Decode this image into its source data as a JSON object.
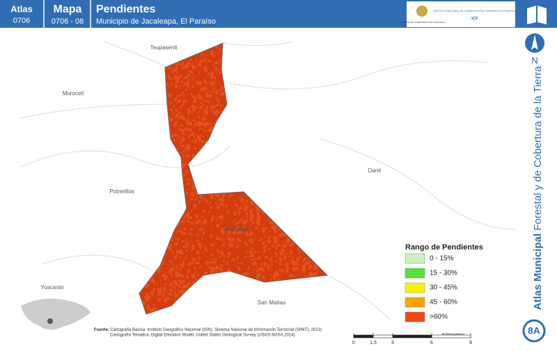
{
  "header": {
    "atlas_label": "Atlas",
    "atlas_code": "0706",
    "map_label": "Mapa",
    "map_code": "0706 - 08",
    "title": "Pendientes",
    "subtitle": "Municipio de Jacaleapa, El Paraíso"
  },
  "logo": {
    "left": "GOBIERNO DE LA REPÚBLICA DE HONDURAS",
    "right": "INSTITUTO NACIONAL DE CONSERVACIÓN Y DESARROLLO FORESTAL",
    "acronym": "ICF"
  },
  "places": [
    "Teupasenti",
    "Morocelí",
    "Danlí",
    "Potrerillos",
    "Jacaleapa",
    "Yuscarán",
    "San Matías"
  ],
  "legend": {
    "title": "Rango de Pendientes",
    "items": [
      {
        "label": "0 - 15%",
        "color": "#c8f0c0"
      },
      {
        "label": "15 - 30%",
        "color": "#55e03a"
      },
      {
        "label": "30 - 45%",
        "color": "#f5f500"
      },
      {
        "label": "45 - 60%",
        "color": "#f5a500"
      },
      {
        "label": ">60%",
        "color": "#f04a10"
      }
    ]
  },
  "north": "N",
  "side_title": {
    "bold": "Atlas Municipal",
    "rest": "Forestal y de Cobertura de la Tierra"
  },
  "page_id": "8A",
  "source": {
    "label": "Fuente:",
    "lines": [
      "Cartografía Básica: Instituto Geográfico Nacional (IGN), Sistema Nacional de Información Territorial (SINIT), 2013)",
      "Cartografía Temática: Digital Elevation Model, United States Geological Survey (USGS-NASA,2014)"
    ]
  },
  "scale": {
    "unit": "Kilómetros",
    "ticks": [
      0,
      1.5,
      3,
      6,
      9
    ]
  }
}
